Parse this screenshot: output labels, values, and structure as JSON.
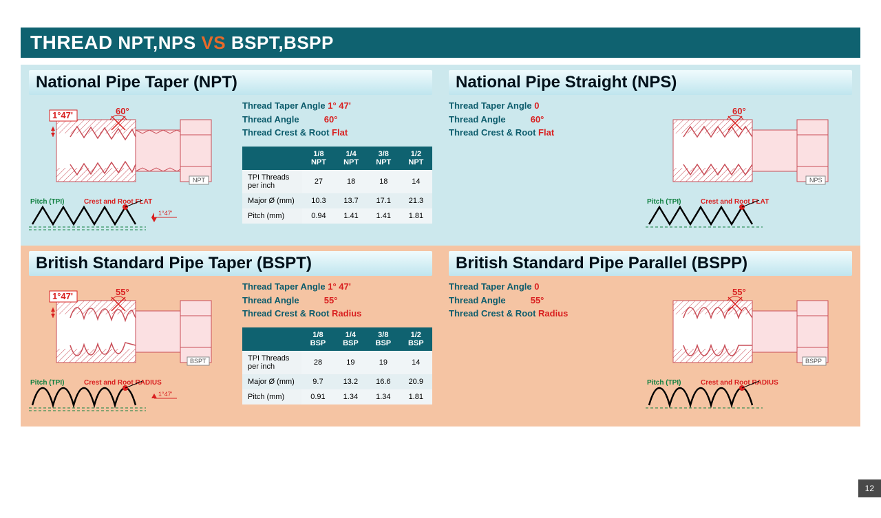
{
  "title": {
    "word1": "THREAD",
    "word2": "NPT,NPS",
    "vs": "VS",
    "word3": "BSPT,BSPP"
  },
  "page_number": "12",
  "colors": {
    "title_bg": "#0f6270",
    "vs": "#e86a2a",
    "top_panel_bg": "#cce8ed",
    "bot_panel_bg": "#f5c4a3",
    "spec_label": "#0d5c6c",
    "spec_value": "#d92020",
    "table_header": "#0f6270",
    "diagram_stroke": "#d92020",
    "hatch": "#fbcdd1",
    "pitch_green": "#0f8040"
  },
  "panels": {
    "npt": {
      "title": "National Pipe Taper (NPT)",
      "taper_angle_label": "1°47'",
      "thread_angle_label": "60°",
      "tag": "NPT",
      "specs": {
        "taper": {
          "label": "Thread Taper Angle",
          "value": "1° 47'"
        },
        "angle": {
          "label": "Thread Angle",
          "value": "60°"
        },
        "crest": {
          "label": "Thread Crest & Root",
          "value": "Flat"
        }
      },
      "profile": {
        "pitch": "Pitch (TPI)",
        "crest": "Crest and Root FLAT",
        "taper_note": "1°47'"
      }
    },
    "nps": {
      "title": "National Pipe Straight (NPS)",
      "thread_angle_label": "60°",
      "tag": "NPS",
      "specs": {
        "taper": {
          "label": "Thread Taper Angle",
          "value": "0"
        },
        "angle": {
          "label": "Thread Angle",
          "value": "60°"
        },
        "crest": {
          "label": "Thread Crest & Root",
          "value": "Flat"
        }
      },
      "profile": {
        "pitch": "Pitch (TPI)",
        "crest": "Crest and Root FLAT"
      }
    },
    "bspt": {
      "title": "British Standard Pipe Taper (BSPT)",
      "taper_angle_label": "1°47'",
      "thread_angle_label": "55°",
      "tag": "BSPT",
      "specs": {
        "taper": {
          "label": "Thread Taper Angle",
          "value": "1° 47'"
        },
        "angle": {
          "label": "Thread Angle",
          "value": "55°"
        },
        "crest": {
          "label": "Thread Crest & Root",
          "value": "Radius"
        }
      },
      "profile": {
        "pitch": "Pitch (TPI)",
        "crest": "Crest and Root RADIUS",
        "taper_note": "1°47'"
      }
    },
    "bspp": {
      "title": "British Standard Pipe Parallel (BSPP)",
      "thread_angle_label": "55°",
      "tag": "BSPP",
      "specs": {
        "taper": {
          "label": "Thread Taper Angle",
          "value": "0"
        },
        "angle": {
          "label": "Thread Angle",
          "value": "55°"
        },
        "crest": {
          "label": "Thread Crest & Root",
          "value": "Radius"
        }
      },
      "profile": {
        "pitch": "Pitch (TPI)",
        "crest": "Crest and Root RADIUS"
      }
    }
  },
  "tables": {
    "npt": {
      "columns": [
        "",
        "1/8 NPT",
        "1/4 NPT",
        "3/8 NPT",
        "1/2 NPT"
      ],
      "rows": [
        [
          "TPI Threads per inch",
          "27",
          "18",
          "18",
          "14"
        ],
        [
          "Major Ø (mm)",
          "10.3",
          "13.7",
          "17.1",
          "21.3"
        ],
        [
          "Pitch (mm)",
          "0.94",
          "1.41",
          "1.41",
          "1.81"
        ]
      ]
    },
    "bsp": {
      "columns": [
        "",
        "1/8 BSP",
        "1/4 BSP",
        "3/8 BSP",
        "1/2 BSP"
      ],
      "rows": [
        [
          "TPI Threads per inch",
          "28",
          "19",
          "19",
          "14"
        ],
        [
          "Major Ø (mm)",
          "9.7",
          "13.2",
          "16.6",
          "20.9"
        ],
        [
          "Pitch (mm)",
          "0.91",
          "1.34",
          "1.34",
          "1.81"
        ]
      ]
    }
  }
}
